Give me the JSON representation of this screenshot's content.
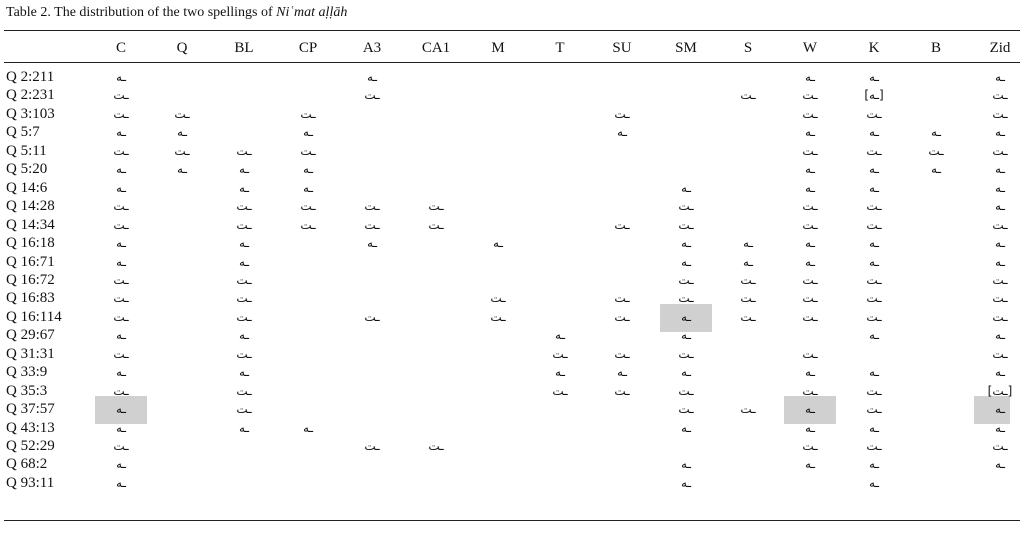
{
  "caption": {
    "text": "Table 2.  The distribution of the two spellings of",
    "italic": "Niʿmat aḷḷāh"
  },
  "table": {
    "columns": [
      "C",
      "Q",
      "BL",
      "CP",
      "A3",
      "CA1",
      "M",
      "T",
      "SU",
      "SM",
      "S",
      "W",
      "K",
      "B",
      "Zid"
    ],
    "rows": [
      {
        "label": "Q 2:211",
        "cells": [
          "ـه",
          null,
          null,
          null,
          "ـه",
          null,
          null,
          null,
          null,
          null,
          null,
          "ـه",
          "ـه",
          null,
          "ـه"
        ]
      },
      {
        "label": "Q 2:231",
        "cells": [
          "ـت",
          null,
          null,
          null,
          "ـت",
          null,
          null,
          null,
          null,
          null,
          "ـت",
          "ـت",
          "[ـه]",
          null,
          "ـت"
        ]
      },
      {
        "label": "Q 3:103",
        "cells": [
          "ـت",
          "ـت",
          null,
          "ـت",
          null,
          null,
          null,
          null,
          "ـت",
          null,
          null,
          "ـت",
          "ـت",
          null,
          "ـت"
        ]
      },
      {
        "label": "Q 5:7",
        "cells": [
          "ـه",
          "ـه",
          null,
          "ـه",
          null,
          null,
          null,
          null,
          "ـه",
          null,
          null,
          "ـه",
          "ـه",
          "ـه",
          "ـه"
        ]
      },
      {
        "label": "Q 5:11",
        "cells": [
          "ـت",
          "ـت",
          "ـت",
          "ـت",
          null,
          null,
          null,
          null,
          null,
          null,
          null,
          "ـت",
          "ـت",
          "ـت",
          "ـت"
        ]
      },
      {
        "label": "Q 5:20",
        "cells": [
          "ـه",
          "ـه",
          "ـه",
          "ـه",
          null,
          null,
          null,
          null,
          null,
          null,
          null,
          "ـه",
          "ـه",
          "ـه",
          "ـه"
        ]
      },
      {
        "label": "Q 14:6",
        "cells": [
          "ـه",
          null,
          "ـه",
          "ـه",
          null,
          null,
          null,
          null,
          null,
          "ـه",
          null,
          "ـه",
          "ـه",
          null,
          "ـه"
        ]
      },
      {
        "label": "Q 14:28",
        "cells": [
          "ـت",
          null,
          "ـت",
          "ـت",
          "ـت",
          "ـت",
          null,
          null,
          null,
          "ـت",
          null,
          "ـت",
          "ـت",
          null,
          "ـه"
        ]
      },
      {
        "label": "Q 14:34",
        "cells": [
          "ـت",
          null,
          "ـت",
          "ـت",
          "ـت",
          "ـت",
          null,
          null,
          "ـت",
          "ـت",
          null,
          "ـت",
          "ـت",
          null,
          "ـت"
        ]
      },
      {
        "label": "Q 16:18",
        "cells": [
          "ـه",
          null,
          "ـه",
          null,
          "ـه",
          null,
          "ـه",
          null,
          null,
          "ـه",
          "ـه",
          "ـه",
          "ـه",
          null,
          "ـه"
        ]
      },
      {
        "label": "Q 16:71",
        "cells": [
          "ـه",
          null,
          "ـه",
          null,
          null,
          null,
          null,
          null,
          null,
          "ـه",
          "ـه",
          "ـه",
          "ـه",
          null,
          "ـه"
        ]
      },
      {
        "label": "Q 16:72",
        "cells": [
          "ـت",
          null,
          "ـت",
          null,
          null,
          null,
          null,
          null,
          null,
          "ـت",
          "ـت",
          "ـت",
          "ـت",
          null,
          "ـت"
        ]
      },
      {
        "label": "Q 16:83",
        "cells": [
          "ـت",
          null,
          "ـت",
          null,
          null,
          null,
          "ـت",
          null,
          "ـت",
          "ـت",
          "ـت",
          "ـت",
          "ـت",
          null,
          "ـت"
        ]
      },
      {
        "label": "Q 16:114",
        "cells": [
          "ـت",
          null,
          "ـت",
          null,
          "ـت",
          null,
          "ـت",
          null,
          "ـت",
          "ـه",
          "ـت",
          "ـت",
          "ـت",
          null,
          "ـت"
        ]
      },
      {
        "label": "Q 29:67",
        "cells": [
          "ـه",
          null,
          "ـه",
          null,
          null,
          null,
          null,
          "ـه",
          null,
          "ـه",
          null,
          null,
          "ـه",
          null,
          "ـه"
        ]
      },
      {
        "label": "Q 31:31",
        "cells": [
          "ـت",
          null,
          "ـت",
          null,
          null,
          null,
          null,
          "ـت",
          "ـت",
          "ـت",
          null,
          "ـت",
          null,
          null,
          "ـت"
        ]
      },
      {
        "label": "Q 33:9",
        "cells": [
          "ـه",
          null,
          "ـه",
          null,
          null,
          null,
          null,
          "ـه",
          "ـه",
          "ـه",
          null,
          "ـه",
          "ـه",
          null,
          "ـه"
        ]
      },
      {
        "label": "Q 35:3",
        "cells": [
          "ـت",
          null,
          "ـت",
          null,
          null,
          null,
          null,
          "ـت",
          "ـت",
          "ـت",
          null,
          "ـت",
          "ـت",
          null,
          "[ـت]"
        ]
      },
      {
        "label": "Q 37:57",
        "cells": [
          "ـه",
          null,
          "ـت",
          null,
          null,
          null,
          null,
          null,
          null,
          "ـت",
          "ـت",
          "ـه",
          "ـت",
          null,
          "ـه"
        ]
      },
      {
        "label": "Q 43:13",
        "cells": [
          "ـه",
          null,
          "ـه",
          "ـه",
          null,
          null,
          null,
          null,
          null,
          "ـه",
          null,
          "ـه",
          "ـه",
          null,
          "ـه"
        ]
      },
      {
        "label": "Q 52:29",
        "cells": [
          "ـت",
          null,
          null,
          null,
          "ـت",
          "ـت",
          null,
          null,
          null,
          null,
          null,
          "ـت",
          "ـت",
          null,
          "ـت"
        ]
      },
      {
        "label": "Q 68:2",
        "cells": [
          "ـه",
          null,
          null,
          null,
          null,
          null,
          null,
          null,
          null,
          "ـه",
          null,
          "ـه",
          "ـه",
          null,
          "ـه"
        ]
      },
      {
        "label": "Q 93:11",
        "cells": [
          "ـه",
          null,
          null,
          null,
          null,
          null,
          null,
          null,
          null,
          "ـه",
          null,
          null,
          "ـه",
          null,
          null
        ]
      }
    ]
  }
}
